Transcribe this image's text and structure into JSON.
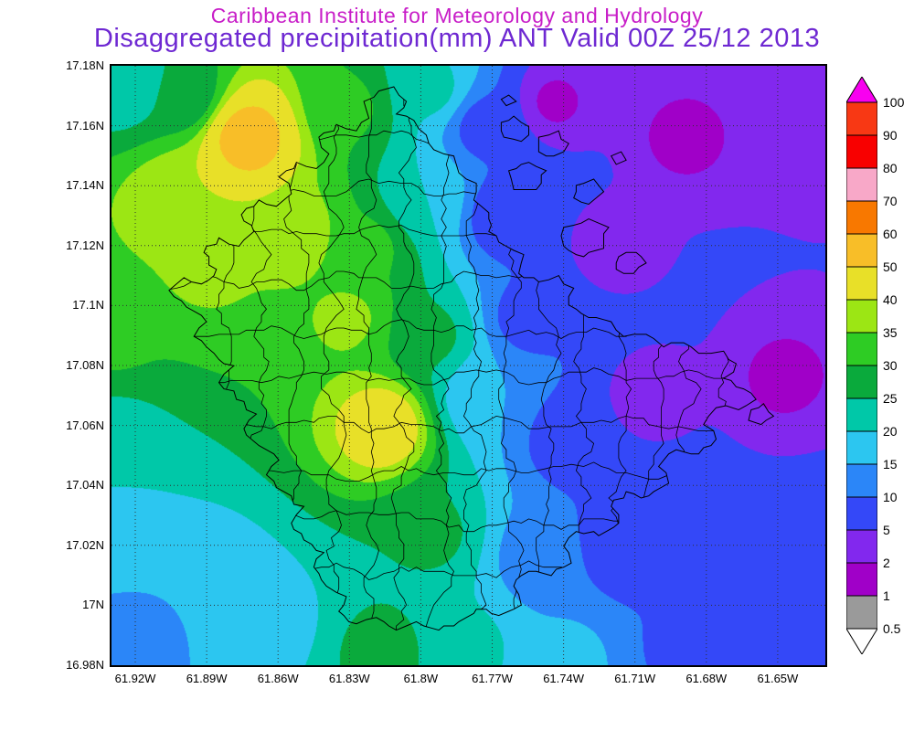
{
  "title": {
    "line1": "Caribbean Institute for Meteorology and Hydrology",
    "line2": "Disaggregated precipitation(mm) ANT Valid 00Z 25/12 2013"
  },
  "colors": {
    "title_line1": "#c81ec8",
    "title_line2": "#6e28d2",
    "grid_dots": "#303030",
    "coastline": "#000000"
  },
  "axes": {
    "lat_ticks": [
      "17.18N",
      "17.16N",
      "17.14N",
      "17.12N",
      "17.1N",
      "17.08N",
      "17.06N",
      "17.04N",
      "17.02N",
      "17N",
      "16.98N"
    ],
    "lon_ticks": [
      "61.92W",
      "61.89W",
      "61.86W",
      "61.83W",
      "61.8W",
      "61.77W",
      "61.74W",
      "61.71W",
      "61.68W",
      "61.65W"
    ]
  },
  "colorbar": {
    "boundary_labels": [
      "100",
      "90",
      "80",
      "70",
      "60",
      "50",
      "40",
      "35",
      "30",
      "25",
      "20",
      "15",
      "10",
      "5",
      "2",
      "1",
      "0.5"
    ]
  },
  "chart_data": {
    "type": "heatmap",
    "title": "Disaggregated precipitation(mm) ANT Valid 00Z 25/12 2013",
    "subtitle": "Caribbean Institute for Meteorology and Hydrology",
    "units": "mm",
    "region_code": "ANT",
    "valid_time": "00Z 25/12 2013",
    "grid": "dotted",
    "legend_position": "right",
    "x_axis": {
      "ticks": [
        "61.92W",
        "61.89W",
        "61.86W",
        "61.83W",
        "61.8W",
        "61.77W",
        "61.74W",
        "61.71W",
        "61.68W",
        "61.65W"
      ],
      "range_deg_west": [
        61.93,
        61.63
      ]
    },
    "y_axis": {
      "ticks": [
        "17.18N",
        "17.16N",
        "17.14N",
        "17.12N",
        "17.1N",
        "17.08N",
        "17.06N",
        "17.04N",
        "17.02N",
        "17N",
        "16.98N"
      ],
      "range_deg_north": [
        16.98,
        17.18
      ]
    },
    "levels_mm": [
      0.5,
      1,
      2,
      5,
      10,
      15,
      20,
      25,
      30,
      35,
      40,
      50,
      60,
      70,
      80,
      90,
      100
    ],
    "band_colors_low_to_high": [
      "#ffffff",
      "#9a9a9a",
      "#a000c8",
      "#8228ee",
      "#3448f8",
      "#2b86f8",
      "#2cc6f0",
      "#00c8a8",
      "#0aaa3c",
      "#2ecc24",
      "#9ce614",
      "#e8e028",
      "#f8be28",
      "#f87800",
      "#f8a8c8",
      "#f80000",
      "#f83814",
      "#f800f0"
    ],
    "field_sample_points_xnorm_ynorm_mm": [
      [
        0.19,
        0.12,
        55
      ],
      [
        0.1,
        0.22,
        40
      ],
      [
        0.13,
        0.33,
        36
      ],
      [
        0.02,
        0.03,
        21
      ],
      [
        0.1,
        0.05,
        26
      ],
      [
        0.0,
        0.45,
        31
      ],
      [
        0.0,
        0.62,
        23
      ],
      [
        0.0,
        0.78,
        17
      ],
      [
        0.02,
        0.97,
        12
      ],
      [
        0.13,
        0.88,
        15
      ],
      [
        0.33,
        0.07,
        31
      ],
      [
        0.45,
        0.04,
        21
      ],
      [
        0.52,
        0.1,
        8
      ],
      [
        0.62,
        0.06,
        1.6
      ],
      [
        0.8,
        0.12,
        1.4
      ],
      [
        0.99,
        0.1,
        2.2
      ],
      [
        0.7,
        0.3,
        2.8
      ],
      [
        0.94,
        0.52,
        1.5
      ],
      [
        0.99,
        0.75,
        5.5
      ],
      [
        0.97,
        0.97,
        7.5
      ],
      [
        0.8,
        0.97,
        9
      ],
      [
        0.64,
        0.99,
        16
      ],
      [
        0.5,
        0.97,
        21
      ],
      [
        0.38,
        0.98,
        27
      ],
      [
        0.22,
        0.93,
        18
      ],
      [
        0.38,
        0.6,
        46
      ],
      [
        0.33,
        0.42,
        36
      ],
      [
        0.26,
        0.28,
        38
      ],
      [
        0.36,
        0.3,
        31
      ],
      [
        0.44,
        0.22,
        20
      ],
      [
        0.55,
        0.25,
        5.5
      ],
      [
        0.45,
        0.45,
        26
      ],
      [
        0.52,
        0.55,
        15
      ],
      [
        0.58,
        0.42,
        8
      ],
      [
        0.64,
        0.62,
        7
      ],
      [
        0.6,
        0.82,
        12
      ],
      [
        0.75,
        0.55,
        3.2
      ],
      [
        0.72,
        0.8,
        6
      ],
      [
        0.45,
        0.78,
        26
      ]
    ]
  },
  "map_overlay": {
    "island_coastline": [
      [
        0.394,
        0.035
      ],
      [
        0.412,
        0.058
      ],
      [
        0.4,
        0.08
      ],
      [
        0.424,
        0.092
      ],
      [
        0.44,
        0.115
      ],
      [
        0.452,
        0.14
      ],
      [
        0.478,
        0.152
      ],
      [
        0.488,
        0.18
      ],
      [
        0.512,
        0.196
      ],
      [
        0.508,
        0.225
      ],
      [
        0.53,
        0.245
      ],
      [
        0.528,
        0.278
      ],
      [
        0.552,
        0.3
      ],
      [
        0.576,
        0.315
      ],
      [
        0.57,
        0.345
      ],
      [
        0.6,
        0.36
      ],
      [
        0.626,
        0.35
      ],
      [
        0.648,
        0.372
      ],
      [
        0.64,
        0.4
      ],
      [
        0.668,
        0.42
      ],
      [
        0.7,
        0.428
      ],
      [
        0.716,
        0.452
      ],
      [
        0.748,
        0.448
      ],
      [
        0.772,
        0.468
      ],
      [
        0.8,
        0.462
      ],
      [
        0.824,
        0.48
      ],
      [
        0.856,
        0.476
      ],
      [
        0.876,
        0.498
      ],
      [
        0.858,
        0.52
      ],
      [
        0.884,
        0.54
      ],
      [
        0.902,
        0.558
      ],
      [
        0.878,
        0.575
      ],
      [
        0.846,
        0.57
      ],
      [
        0.83,
        0.598
      ],
      [
        0.846,
        0.624
      ],
      [
        0.822,
        0.648
      ],
      [
        0.79,
        0.64
      ],
      [
        0.768,
        0.668
      ],
      [
        0.78,
        0.696
      ],
      [
        0.752,
        0.718
      ],
      [
        0.72,
        0.71
      ],
      [
        0.7,
        0.736
      ],
      [
        0.712,
        0.762
      ],
      [
        0.684,
        0.784
      ],
      [
        0.652,
        0.776
      ],
      [
        0.632,
        0.8
      ],
      [
        0.644,
        0.828
      ],
      [
        0.616,
        0.85
      ],
      [
        0.584,
        0.842
      ],
      [
        0.562,
        0.868
      ],
      [
        0.574,
        0.898
      ],
      [
        0.544,
        0.916
      ],
      [
        0.512,
        0.905
      ],
      [
        0.488,
        0.928
      ],
      [
        0.458,
        0.942
      ],
      [
        0.428,
        0.928
      ],
      [
        0.4,
        0.94
      ],
      [
        0.372,
        0.922
      ],
      [
        0.344,
        0.93
      ],
      [
        0.318,
        0.91
      ],
      [
        0.33,
        0.884
      ],
      [
        0.302,
        0.868
      ],
      [
        0.282,
        0.838
      ],
      [
        0.298,
        0.812
      ],
      [
        0.27,
        0.792
      ],
      [
        0.252,
        0.762
      ],
      [
        0.268,
        0.736
      ],
      [
        0.24,
        0.712
      ],
      [
        0.218,
        0.684
      ],
      [
        0.236,
        0.658
      ],
      [
        0.208,
        0.634
      ],
      [
        0.186,
        0.606
      ],
      [
        0.202,
        0.58
      ],
      [
        0.174,
        0.556
      ],
      [
        0.152,
        0.528
      ],
      [
        0.17,
        0.502
      ],
      [
        0.142,
        0.478
      ],
      [
        0.116,
        0.452
      ],
      [
        0.134,
        0.426
      ],
      [
        0.104,
        0.402
      ],
      [
        0.08,
        0.376
      ],
      [
        0.1,
        0.352
      ],
      [
        0.126,
        0.364
      ],
      [
        0.148,
        0.34
      ],
      [
        0.128,
        0.312
      ],
      [
        0.152,
        0.288
      ],
      [
        0.178,
        0.3
      ],
      [
        0.2,
        0.276
      ],
      [
        0.182,
        0.248
      ],
      [
        0.206,
        0.224
      ],
      [
        0.232,
        0.236
      ],
      [
        0.252,
        0.212
      ],
      [
        0.236,
        0.184
      ],
      [
        0.26,
        0.16
      ],
      [
        0.286,
        0.172
      ],
      [
        0.306,
        0.148
      ],
      [
        0.292,
        0.12
      ],
      [
        0.316,
        0.098
      ],
      [
        0.342,
        0.11
      ],
      [
        0.362,
        0.086
      ],
      [
        0.352,
        0.06
      ],
      [
        0.376,
        0.042
      ]
    ],
    "offshore_islets": [
      [
        [
          0.545,
          0.095
        ],
        [
          0.565,
          0.085
        ],
        [
          0.585,
          0.1
        ],
        [
          0.575,
          0.125
        ],
        [
          0.55,
          0.12
        ]
      ],
      [
        [
          0.6,
          0.12
        ],
        [
          0.625,
          0.11
        ],
        [
          0.64,
          0.13
        ],
        [
          0.62,
          0.15
        ],
        [
          0.6,
          0.145
        ]
      ],
      [
        [
          0.555,
          0.175
        ],
        [
          0.585,
          0.16
        ],
        [
          0.61,
          0.175
        ],
        [
          0.595,
          0.205
        ],
        [
          0.565,
          0.205
        ]
      ],
      [
        [
          0.65,
          0.2
        ],
        [
          0.675,
          0.19
        ],
        [
          0.69,
          0.21
        ],
        [
          0.67,
          0.23
        ],
        [
          0.648,
          0.222
        ]
      ],
      [
        [
          0.635,
          0.27
        ],
        [
          0.668,
          0.255
        ],
        [
          0.695,
          0.27
        ],
        [
          0.69,
          0.305
        ],
        [
          0.66,
          0.318
        ],
        [
          0.632,
          0.3
        ]
      ],
      [
        [
          0.71,
          0.32
        ],
        [
          0.735,
          0.31
        ],
        [
          0.75,
          0.33
        ],
        [
          0.73,
          0.348
        ],
        [
          0.708,
          0.34
        ]
      ],
      [
        [
          0.895,
          0.575
        ],
        [
          0.915,
          0.565
        ],
        [
          0.928,
          0.585
        ],
        [
          0.91,
          0.6
        ],
        [
          0.893,
          0.592
        ]
      ],
      [
        [
          0.545,
          0.055
        ],
        [
          0.558,
          0.048
        ],
        [
          0.566,
          0.06
        ],
        [
          0.552,
          0.068
        ]
      ],
      [
        [
          0.7,
          0.15
        ],
        [
          0.715,
          0.143
        ],
        [
          0.722,
          0.157
        ],
        [
          0.707,
          0.164
        ]
      ]
    ],
    "boundary_grid": {
      "vertical_x": [
        0.16,
        0.21,
        0.26,
        0.31,
        0.36,
        0.41,
        0.46,
        0.51,
        0.56,
        0.61,
        0.66,
        0.71,
        0.76,
        0.81,
        0.86
      ],
      "horizontal_y": [
        0.12,
        0.2,
        0.28,
        0.36,
        0.44,
        0.52,
        0.6,
        0.68,
        0.76,
        0.84
      ]
    }
  }
}
